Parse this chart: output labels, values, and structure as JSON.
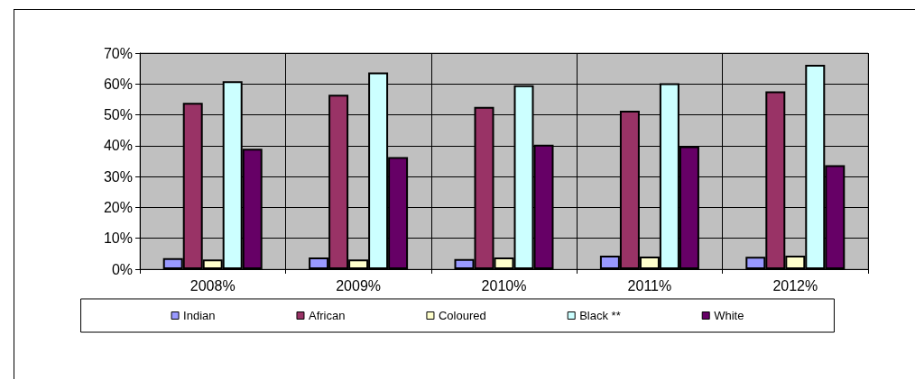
{
  "chart_data": {
    "type": "bar",
    "categories": [
      "2008%",
      "2009%",
      "2010%",
      "2011%",
      "2012%"
    ],
    "series": [
      {
        "name": "Indian",
        "color": "#9999ff",
        "values": [
          3.6,
          3.8,
          3.3,
          4.4,
          4.0
        ]
      },
      {
        "name": "African",
        "color": "#993366",
        "values": [
          53.9,
          56.5,
          52.6,
          51.3,
          57.6
        ]
      },
      {
        "name": "Coloured",
        "color": "#ffffcc",
        "values": [
          3.1,
          3.1,
          3.8,
          4.1,
          4.4
        ]
      },
      {
        "name": "Black **",
        "color": "#ccffff",
        "values": [
          60.9,
          63.7,
          59.6,
          60.2,
          66.2
        ]
      },
      {
        "name": "White",
        "color": "#660066",
        "values": [
          39.0,
          36.3,
          40.3,
          39.8,
          33.7
        ]
      }
    ],
    "ylim": [
      0,
      70
    ],
    "yticks": [
      {
        "value": 0,
        "label": "0%"
      },
      {
        "value": 10,
        "label": "10%"
      },
      {
        "value": 20,
        "label": "20%"
      },
      {
        "value": 30,
        "label": "30%"
      },
      {
        "value": 40,
        "label": "40%"
      },
      {
        "value": 50,
        "label": "50%"
      },
      {
        "value": 60,
        "label": "60%"
      },
      {
        "value": 70,
        "label": "70%"
      }
    ],
    "grid": true,
    "legend": "bottom"
  }
}
